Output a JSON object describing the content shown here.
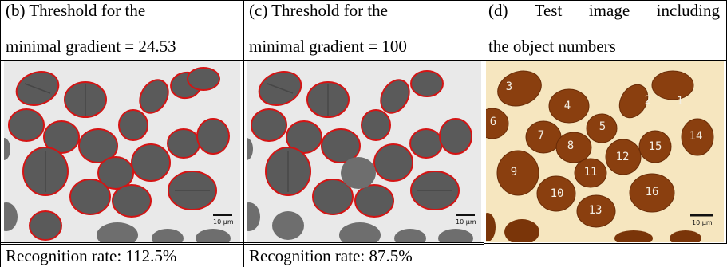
{
  "panel_b": {
    "caption_line1": "(b) Threshold for the",
    "caption_line2": "minimal gradient = 24.53",
    "scale_bar_label": "10 μm",
    "recognition": "Recognition rate: 112.5%"
  },
  "panel_c": {
    "caption_line1": "(c) Threshold for the",
    "caption_line2": "minimal gradient = 100",
    "scale_bar_label": "10 μm",
    "recognition": "Recognition rate: 87.5%"
  },
  "panel_d": {
    "caption_line1": "(d) Test image including",
    "caption_line2": "the object numbers",
    "scale_bar_label": "10 µm",
    "object_numbers": [
      "1",
      "2",
      "3",
      "4",
      "5",
      "6",
      "7",
      "8",
      "9",
      "10",
      "11",
      "12",
      "13",
      "14",
      "15",
      "16"
    ]
  },
  "colors": {
    "contour": "#d41414",
    "grain_gray": "#5a5a5a",
    "grain_brown": "#8a3f0f",
    "background_gray": "#e9e9e9",
    "background_cream": "#f6e6bf"
  }
}
